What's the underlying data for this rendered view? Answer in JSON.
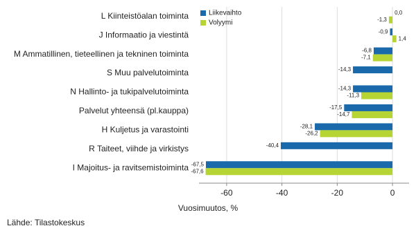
{
  "chart_data": {
    "type": "hbar",
    "categories": [
      "L Kiinteistöalan toiminta",
      "J Informaatio ja viestintä",
      "M Ammatillinen, tieteellinen ja tekninen toiminta",
      "S Muu palvelutoiminta",
      "N Hallinto- ja tukipalvelutoiminta",
      "Palvelut yhteensä (pl.kauppa)",
      "H Kuljetus ja varastointi",
      "R Taiteet, viihde ja virkistys",
      "I Majoitus- ja ravitsemistoiminta"
    ],
    "series": [
      {
        "name": "Liikevaihto",
        "color": "#1a6aab",
        "values": [
          0.0,
          -0.9,
          -6.8,
          -14.3,
          -14.3,
          -17.5,
          -28.1,
          -40.4,
          -67.5
        ],
        "value_labels": [
          "0,0",
          "-0,9",
          "-6,8",
          "-14,3",
          "-14,3",
          "-17,5",
          "-28,1",
          "-40,4",
          "-67,5"
        ]
      },
      {
        "name": "Volyymi",
        "color": "#b6d433",
        "values": [
          -1.3,
          1.4,
          -7.1,
          null,
          -11.3,
          -14.7,
          -26.2,
          null,
          -67.6
        ],
        "value_labels": [
          "-1,3",
          "1,4",
          "-7,1",
          null,
          "-11,3",
          "-14,7",
          "-26,2",
          null,
          "-67,6"
        ]
      }
    ],
    "xlim": [
      -70,
      6
    ],
    "xticks": [
      -60,
      -40,
      -20,
      0
    ],
    "grid": true,
    "xlabel": "Vuosimuutos, %",
    "legend": "top-left",
    "source": "Lähde: Tilastokeskus"
  }
}
